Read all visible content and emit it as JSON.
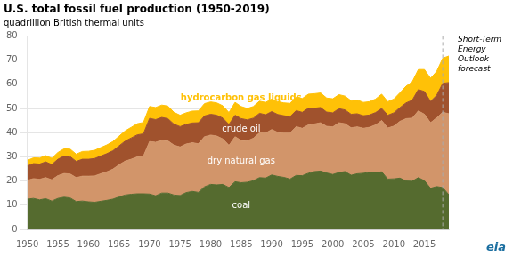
{
  "chart_data": {
    "type": "area",
    "title": "U.S. total fossil fuel production (1950-2019)",
    "subtitle": "quadrillion British thermal units",
    "stacked": true,
    "grid": "y",
    "x": [
      1950,
      1951,
      1952,
      1953,
      1954,
      1955,
      1956,
      1957,
      1958,
      1959,
      1960,
      1961,
      1962,
      1963,
      1964,
      1965,
      1966,
      1967,
      1968,
      1969,
      1970,
      1971,
      1972,
      1973,
      1974,
      1975,
      1976,
      1977,
      1978,
      1979,
      1980,
      1981,
      1982,
      1983,
      1984,
      1985,
      1986,
      1987,
      1988,
      1989,
      1990,
      1991,
      1992,
      1993,
      1994,
      1995,
      1996,
      1997,
      1998,
      1999,
      2000,
      2001,
      2002,
      2003,
      2004,
      2005,
      2006,
      2007,
      2008,
      2009,
      2010,
      2011,
      2012,
      2013,
      2014,
      2015,
      2016,
      2017,
      2018,
      2019
    ],
    "series": [
      {
        "name": "coal",
        "color": "#556b2f",
        "values": [
          12.5,
          12.8,
          12.2,
          12.7,
          11.7,
          12.8,
          13.3,
          13.0,
          11.5,
          11.7,
          11.4,
          11.2,
          11.6,
          12.0,
          12.5,
          13.4,
          14.2,
          14.5,
          14.7,
          14.7,
          14.6,
          13.9,
          15.0,
          15.0,
          14.2,
          14.0,
          15.2,
          15.7,
          15.3,
          17.6,
          18.6,
          18.4,
          18.6,
          17.3,
          19.7,
          19.3,
          19.5,
          20.1,
          21.4,
          21.2,
          22.5,
          21.9,
          21.5,
          20.8,
          22.3,
          22.2,
          23.2,
          23.9,
          24.1,
          23.3,
          22.7,
          23.5,
          23.9,
          22.4,
          23.0,
          23.2,
          23.6,
          23.5,
          23.8,
          20.8,
          20.9,
          21.2,
          20.0,
          19.9,
          21.4,
          20.1,
          17.0,
          17.7,
          17.3,
          14.3
        ]
      },
      {
        "name": "dry natural gas",
        "color": "#d2956a",
        "values": [
          7.8,
          8.2,
          8.5,
          8.7,
          8.8,
          9.4,
          9.8,
          9.9,
          9.9,
          10.3,
          10.6,
          10.9,
          11.4,
          11.8,
          12.4,
          13.3,
          14.0,
          14.5,
          15.3,
          15.6,
          21.7,
          22.1,
          21.9,
          21.6,
          20.6,
          20.1,
          20.1,
          20.1,
          20.1,
          20.7,
          20.4,
          20.2,
          18.8,
          17.4,
          18.6,
          17.5,
          17.1,
          17.6,
          18.5,
          18.6,
          18.8,
          18.2,
          18.3,
          19.0,
          20.2,
          19.6,
          20.0,
          19.7,
          20.0,
          19.3,
          19.7,
          20.6,
          19.8,
          19.6,
          19.4,
          18.6,
          18.6,
          19.7,
          21.2,
          21.1,
          21.8,
          23.5,
          25.8,
          26.1,
          27.6,
          27.5,
          27.1,
          28.4,
          31.1,
          33.5
        ]
      },
      {
        "name": "crude oil",
        "color": "#a0522d",
        "values": [
          5.9,
          6.2,
          6.3,
          6.5,
          6.3,
          6.8,
          7.2,
          7.2,
          6.7,
          7.0,
          7.0,
          7.2,
          7.3,
          7.5,
          7.6,
          7.8,
          8.3,
          8.8,
          9.1,
          9.2,
          9.6,
          9.4,
          9.4,
          9.2,
          8.7,
          8.4,
          8.1,
          8.2,
          8.7,
          8.6,
          8.6,
          8.6,
          8.6,
          8.7,
          8.9,
          9.0,
          8.7,
          8.3,
          8.1,
          7.6,
          7.4,
          7.4,
          7.2,
          6.8,
          6.6,
          6.6,
          6.9,
          6.5,
          6.3,
          5.9,
          5.8,
          5.8,
          5.7,
          5.6,
          5.4,
          5.2,
          5.1,
          5.1,
          5.0,
          5.3,
          5.5,
          5.7,
          6.5,
          7.4,
          8.8,
          9.4,
          8.8,
          9.3,
          12.0,
          12.9
        ]
      },
      {
        "name": "hydrocarbon gas liquids",
        "color": "#ffc107",
        "values": [
          2.3,
          2.4,
          2.5,
          2.6,
          2.6,
          2.8,
          3.0,
          3.1,
          3.0,
          3.2,
          3.3,
          3.4,
          3.5,
          3.6,
          3.8,
          4.0,
          4.2,
          4.4,
          4.6,
          4.7,
          4.9,
          5.0,
          5.1,
          5.2,
          4.9,
          4.7,
          4.8,
          4.9,
          4.9,
          5.1,
          5.1,
          5.1,
          5.1,
          4.9,
          5.3,
          5.0,
          4.7,
          4.8,
          5.0,
          5.1,
          5.2,
          5.3,
          5.3,
          5.5,
          5.6,
          5.7,
          5.8,
          6.0,
          6.0,
          5.8,
          5.8,
          5.8,
          5.7,
          5.6,
          5.7,
          5.5,
          5.5,
          5.6,
          5.9,
          5.6,
          5.7,
          6.1,
          6.9,
          7.6,
          8.3,
          9.1,
          9.6,
          9.9,
          10.4,
          11.0
        ]
      }
    ],
    "xlim": [
      1950,
      2019
    ],
    "xticks": [
      1950,
      1955,
      1960,
      1965,
      1970,
      1975,
      1980,
      1985,
      1990,
      1995,
      2000,
      2005,
      2010,
      2015
    ],
    "ylim": [
      0,
      80
    ],
    "yticks": [
      0,
      10,
      20,
      30,
      40,
      50,
      60,
      70,
      80
    ],
    "annotations": [
      {
        "text": "Short-Term\nEnergy\nOutlook\nforecast",
        "x": 2018,
        "color": "#aaaaaa",
        "line_style": "dashed"
      },
      {
        "text": "eia",
        "color": "#1a6ea0"
      }
    ]
  }
}
